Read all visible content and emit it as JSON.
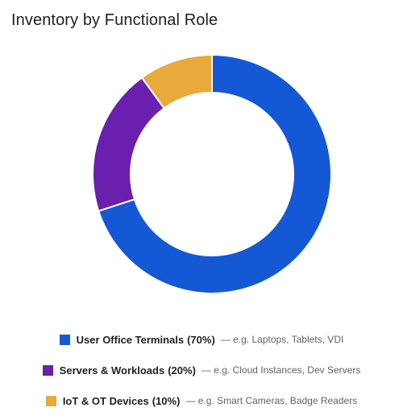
{
  "chart_data": {
    "type": "pie",
    "title": "Inventory by Functional Role",
    "donut": true,
    "legend_position": "bottom",
    "slices": [
      {
        "label": "User Office Terminals",
        "percent_label": "(70%)",
        "value": 70,
        "description": "— e.g. Laptops, Tablets, VDI",
        "color": "#1558d6"
      },
      {
        "label": "Servers & Workloads",
        "percent_label": "(20%)",
        "value": 20,
        "description": "— e.g. Cloud Instances, Dev Servers",
        "color": "#6a1fae"
      },
      {
        "label": "IoT & OT Devices",
        "percent_label": "(10%)",
        "value": 10,
        "description": "— e.g. Smart Cameras, Badge Readers",
        "color": "#e8aa3a"
      }
    ]
  }
}
